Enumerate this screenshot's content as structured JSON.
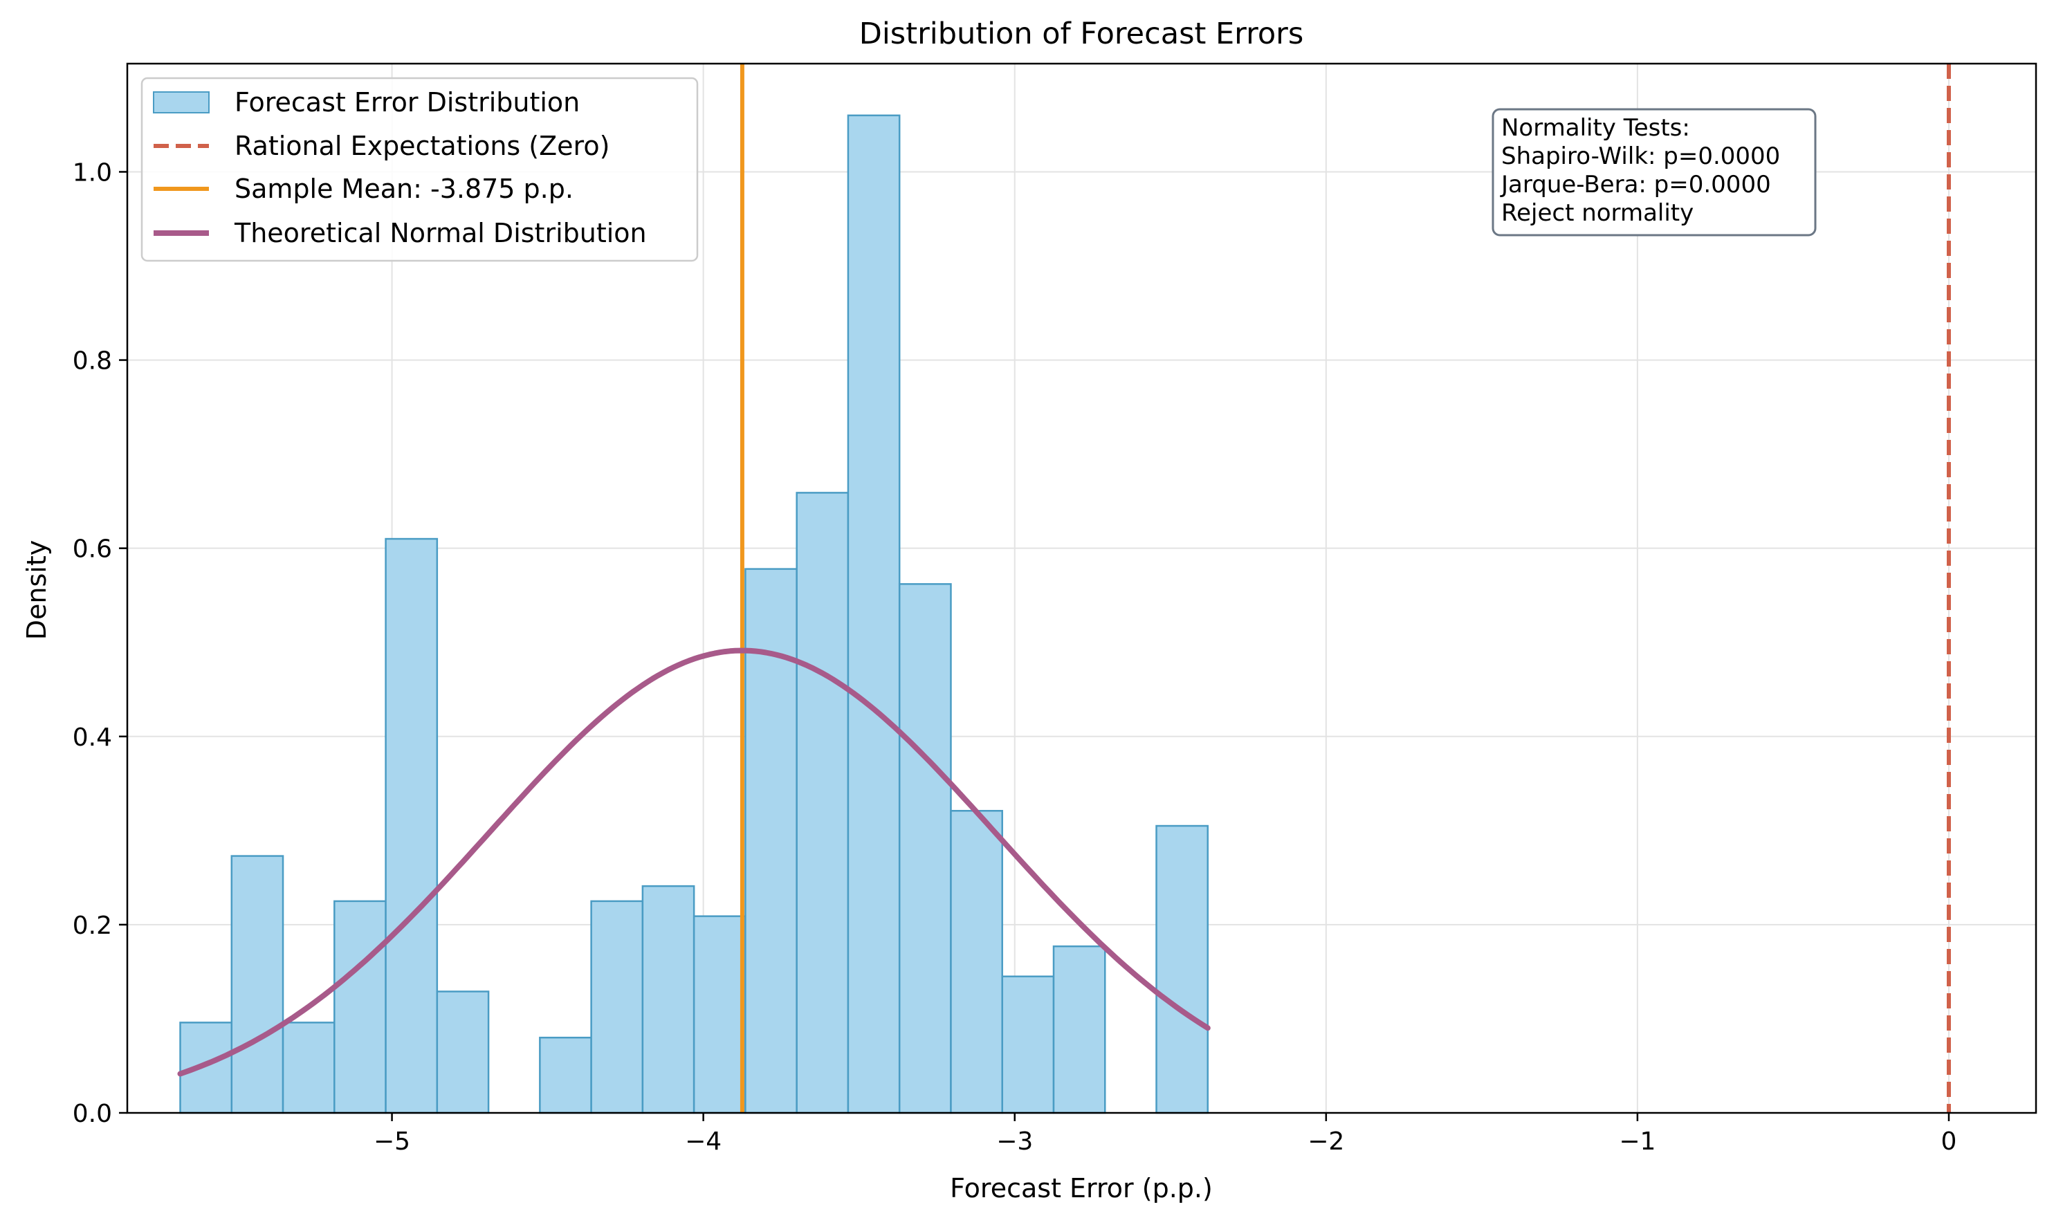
{
  "chart_data": {
    "type": "histogram",
    "title": "Distribution of Forecast Errors",
    "xlabel": "Forecast Error (p.p.)",
    "ylabel": "Density",
    "xlim": [
      -5.85,
      0.28
    ],
    "ylim": [
      0.0,
      1.115
    ],
    "xticks": [
      -5,
      -4,
      -3,
      -2,
      -1,
      0
    ],
    "xtick_labels": [
      "−5",
      "−4",
      "−3",
      "−2",
      "−1",
      "0"
    ],
    "yticks": [
      0.0,
      0.2,
      0.4,
      0.6,
      0.8,
      1.0
    ],
    "ytick_labels": [
      "0.0",
      "0.2",
      "0.4",
      "0.6",
      "0.8",
      "1.0"
    ],
    "grid": true,
    "legend_position": "top-left",
    "histogram": {
      "name": "Forecast Error Distribution",
      "color": "#a9d6ee",
      "edge_color": "#4a9cc4",
      "bins": [
        {
          "x0": -5.68,
          "x1": -5.515,
          "density": 0.096
        },
        {
          "x0": -5.515,
          "x1": -5.35,
          "density": 0.273
        },
        {
          "x0": -5.35,
          "x1": -5.185,
          "density": 0.096
        },
        {
          "x0": -5.185,
          "x1": -5.02,
          "density": 0.225
        },
        {
          "x0": -5.02,
          "x1": -4.855,
          "density": 0.61
        },
        {
          "x0": -4.855,
          "x1": -4.69,
          "density": 0.129
        },
        {
          "x0": -4.69,
          "x1": -4.525,
          "density": 0.0
        },
        {
          "x0": -4.525,
          "x1": -4.36,
          "density": 0.08
        },
        {
          "x0": -4.36,
          "x1": -4.195,
          "density": 0.225
        },
        {
          "x0": -4.195,
          "x1": -4.03,
          "density": 0.241
        },
        {
          "x0": -4.03,
          "x1": -3.865,
          "density": 0.209
        },
        {
          "x0": -3.865,
          "x1": -3.7,
          "density": 0.578
        },
        {
          "x0": -3.7,
          "x1": -3.535,
          "density": 0.659
        },
        {
          "x0": -3.535,
          "x1": -3.37,
          "density": 1.06
        },
        {
          "x0": -3.37,
          "x1": -3.205,
          "density": 0.562
        },
        {
          "x0": -3.205,
          "x1": -3.04,
          "density": 0.321
        },
        {
          "x0": -3.04,
          "x1": -2.875,
          "density": 0.145
        },
        {
          "x0": -2.875,
          "x1": -2.71,
          "density": 0.177
        },
        {
          "x0": -2.71,
          "x1": -2.545,
          "density": 0.0
        },
        {
          "x0": -2.545,
          "x1": -2.38,
          "density": 0.305
        }
      ]
    },
    "reference_lines": [
      {
        "name": "Rational Expectations (Zero)",
        "x": 0.0,
        "color": "#d0614a",
        "style": "dashed"
      },
      {
        "name": "Sample Mean: -3.875 p.p.",
        "x": -3.875,
        "color": "#f0971d",
        "style": "solid"
      }
    ],
    "normal_curve": {
      "name": "Theoretical Normal Distribution",
      "color": "#a85a8a",
      "mean": -3.875,
      "std": 0.812,
      "x_range": [
        -5.68,
        -2.38
      ]
    },
    "annotation": {
      "lines": [
        "Normality Tests:",
        "Shapiro-Wilk: p=0.0000",
        "Jarque-Bera: p=0.0000",
        "Reject normality"
      ],
      "position": "top-right"
    }
  }
}
